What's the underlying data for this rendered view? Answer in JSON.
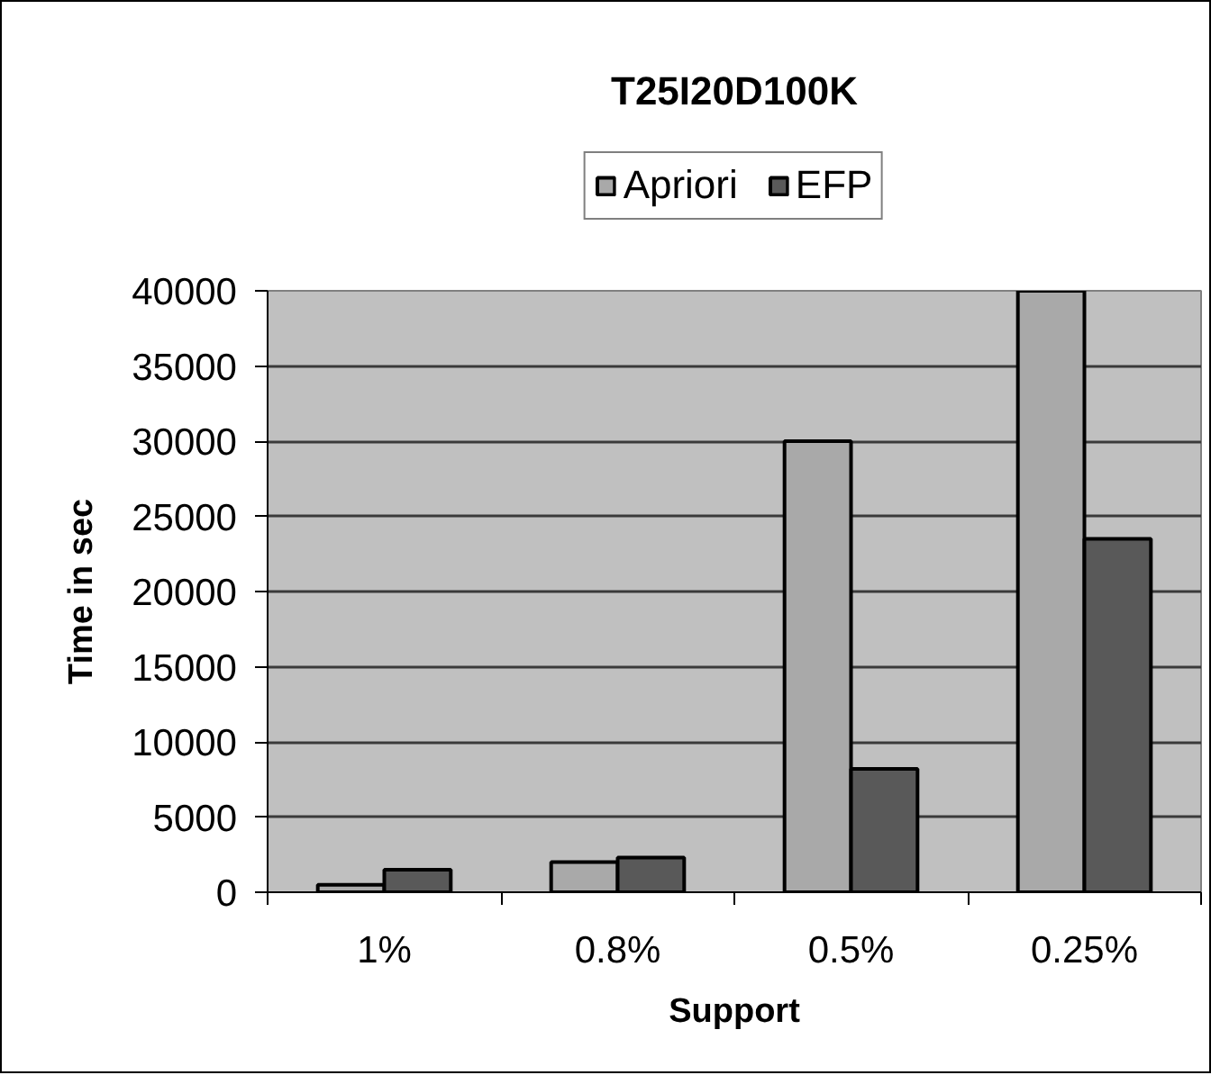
{
  "chart_data": {
    "type": "bar",
    "title": "T25I20D100K",
    "xlabel": "Support",
    "ylabel": "Time in sec",
    "categories": [
      "1%",
      "0.8%",
      "0.5%",
      "0.25%"
    ],
    "series": [
      {
        "name": "Apriori",
        "color": "#a9a9a9",
        "values": [
          500,
          2000,
          30000,
          40000
        ]
      },
      {
        "name": "EFP",
        "color": "#595959",
        "values": [
          1500,
          2300,
          8200,
          23500
        ]
      }
    ],
    "ylim": [
      0,
      40000
    ],
    "yticks": [
      0,
      5000,
      10000,
      15000,
      20000,
      25000,
      30000,
      35000,
      40000
    ],
    "grid": "y",
    "legend": "top"
  }
}
